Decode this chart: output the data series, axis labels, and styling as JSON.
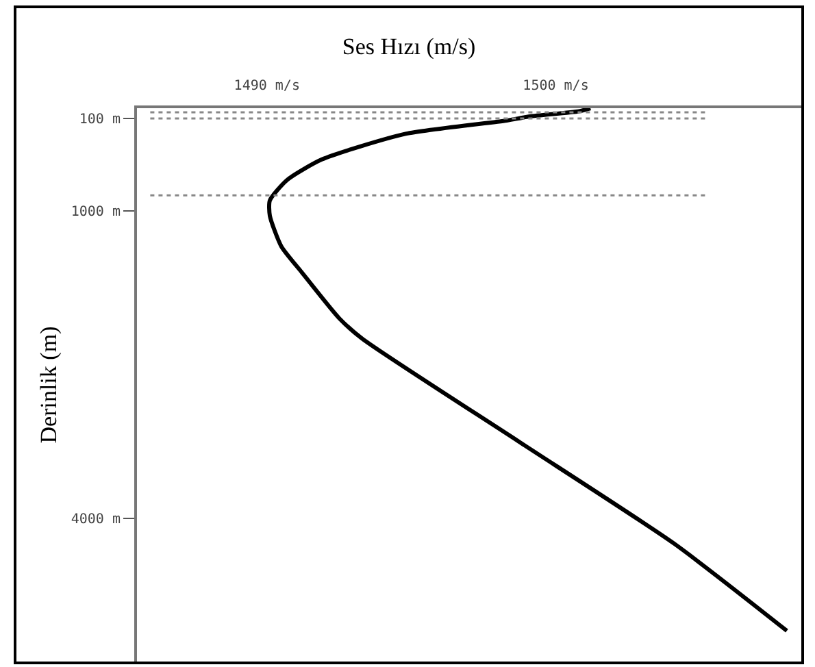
{
  "chart_data": {
    "type": "line",
    "title": "Ses Hızı (m/s)",
    "ylabel": "Derinlik (m)",
    "x": [
      1501.2,
      1500.8,
      1499.1,
      1498.3,
      1494.8,
      1491.9,
      1490.7,
      1490.1,
      1490.1,
      1490.5,
      1491.2,
      1492.5,
      1493.3,
      1498.7,
      1504.1,
      1508.0
    ],
    "series": [
      {
        "color": "#000000",
        "values": [
          0,
          30,
          80,
          120,
          250,
          500,
          700,
          900,
          1050,
          1350,
          1600,
          2050,
          2250,
          3250,
          4250,
          5100
        ]
      }
    ],
    "xlim": [
      1485.5,
      1508.5
    ],
    "xticks": [
      {
        "value": 1490,
        "label": "1490 m/s"
      },
      {
        "value": 1500,
        "label": "1500 m/s"
      }
    ],
    "ylim": [
      5400,
      0
    ],
    "yticks": [
      {
        "value": 100,
        "label": "100 m"
      },
      {
        "value": 1000,
        "label": "1000 m"
      },
      {
        "value": 4000,
        "label": "4000 m"
      }
    ],
    "ref_lines": [
      {
        "axis": "y",
        "value": 40,
        "color": "#888888",
        "line_style": "dotted"
      },
      {
        "axis": "y",
        "value": 100,
        "color": "#888888",
        "line_style": "dotted"
      },
      {
        "axis": "y",
        "value": 850,
        "color": "#888888",
        "line_style": "dotted"
      }
    ],
    "grid": false,
    "marker": "none",
    "line_style": "solid"
  }
}
